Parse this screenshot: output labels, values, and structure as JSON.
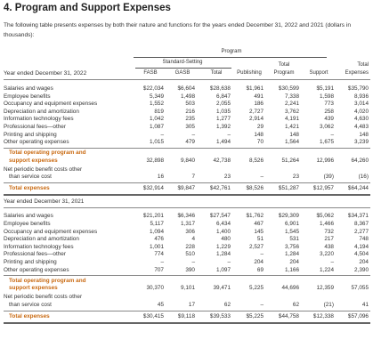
{
  "title": "4. Program and Support Expenses",
  "intro": "The following table presents expenses by both their nature and functions for the years ended December 31, 2022 and 2021 (dollars in thousands):",
  "header": {
    "program": "Program",
    "standard_setting": "Standard-Setting",
    "fasb": "FASB",
    "gasb": "GASB",
    "total_ss": "Total",
    "publishing": "Publishing",
    "total_prog_1": "Total",
    "total_prog_2": "Program",
    "support": "Support",
    "total_exp_1": "Total",
    "total_exp_2": "Expenses",
    "year2022": "Year ended December 31, 2022",
    "year2021": "Year ended December 31, 2021"
  },
  "table2022": [
    {
      "label": "Salaries and wages",
      "v": [
        "$22,034",
        "$6,604",
        "$28,638",
        "$1,961",
        "$30,599",
        "$5,191",
        "$35,790"
      ]
    },
    {
      "label": "Employee benefits",
      "v": [
        "5,349",
        "1,498",
        "6,847",
        "491",
        "7,338",
        "1,598",
        "8,936"
      ]
    },
    {
      "label": "Occupancy and equipment expenses",
      "v": [
        "1,552",
        "503",
        "2,055",
        "186",
        "2,241",
        "773",
        "3,014"
      ]
    },
    {
      "label": "Depreciation and amortization",
      "v": [
        "819",
        "216",
        "1,035",
        "2,727",
        "3,762",
        "258",
        "4,020"
      ]
    },
    {
      "label": "Information technology fees",
      "v": [
        "1,042",
        "235",
        "1,277",
        "2,914",
        "4,191",
        "439",
        "4,630"
      ]
    },
    {
      "label": "Professional fees—other",
      "v": [
        "1,087",
        "305",
        "1,392",
        "29",
        "1,421",
        "3,062",
        "4,483"
      ]
    },
    {
      "label": "Printing and shipping",
      "v": [
        "–",
        "–",
        "–",
        "148",
        "148",
        "–",
        "148"
      ]
    },
    {
      "label": "Other operating expenses",
      "v": [
        "1,015",
        "479",
        "1,494",
        "70",
        "1,564",
        "1,675",
        "3,239"
      ]
    }
  ],
  "subtotal2022": {
    "label1": "Total operating program and",
    "label2": "support expenses",
    "v": [
      "32,898",
      "9,840",
      "42,738",
      "8,526",
      "51,264",
      "12,996",
      "64,260"
    ]
  },
  "pension2022": {
    "label1": "Net periodic benefit costs other",
    "label2": "than service cost",
    "v": [
      "16",
      "7",
      "23",
      "–",
      "23",
      "(39)",
      "(16)"
    ]
  },
  "total2022": {
    "label": "Total expenses",
    "v": [
      "$32,914",
      "$9,847",
      "$42,761",
      "$8,526",
      "$51,287",
      "$12,957",
      "$64,244"
    ]
  },
  "table2021": [
    {
      "label": "Salaries and wages",
      "v": [
        "$21,201",
        "$6,346",
        "$27,547",
        "$1,762",
        "$29,309",
        "$5,062",
        "$34,371"
      ]
    },
    {
      "label": "Employee benefits",
      "v": [
        "5,117",
        "1,317",
        "6,434",
        "467",
        "6,901",
        "1,466",
        "8,367"
      ]
    },
    {
      "label": "Occupancy and equipment expenses",
      "v": [
        "1,094",
        "306",
        "1,400",
        "145",
        "1,545",
        "732",
        "2,277"
      ]
    },
    {
      "label": "Depreciation and amortization",
      "v": [
        "476",
        "4",
        "480",
        "51",
        "531",
        "217",
        "748"
      ]
    },
    {
      "label": "Information technology fees",
      "v": [
        "1,001",
        "228",
        "1,229",
        "2,527",
        "3,756",
        "438",
        "4,194"
      ]
    },
    {
      "label": "Professional fees—other",
      "v": [
        "774",
        "510",
        "1,284",
        "–",
        "1,284",
        "3,220",
        "4,504"
      ]
    },
    {
      "label": "Printing and shipping",
      "v": [
        "–",
        "–",
        "–",
        "204",
        "204",
        "–",
        "204"
      ]
    },
    {
      "label": "Other operating expenses",
      "v": [
        "707",
        "390",
        "1,097",
        "69",
        "1,166",
        "1,224",
        "2,390"
      ]
    }
  ],
  "subtotal2021": {
    "label1": "Total operating program and",
    "label2": "support expenses",
    "v": [
      "30,370",
      "9,101",
      "39,471",
      "5,225",
      "44,696",
      "12,359",
      "57,055"
    ]
  },
  "pension2021": {
    "label1": "Net periodic benefit costs other",
    "label2": "than service cost",
    "v": [
      "45",
      "17",
      "62",
      "–",
      "62",
      "(21)",
      "41"
    ]
  },
  "total2021": {
    "label": "Total expenses",
    "v": [
      "$30,415",
      "$9,118",
      "$39,533",
      "$5,225",
      "$44,758",
      "$12,338",
      "$57,096"
    ]
  }
}
